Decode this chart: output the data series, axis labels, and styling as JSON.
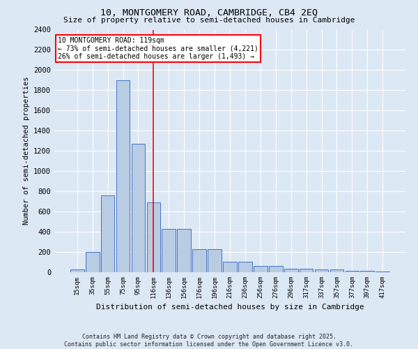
{
  "title_line1": "10, MONTGOMERY ROAD, CAMBRIDGE, CB4 2EQ",
  "title_line2": "Size of property relative to semi-detached houses in Cambridge",
  "xlabel": "Distribution of semi-detached houses by size in Cambridge",
  "ylabel": "Number of semi-detached properties",
  "categories": [
    "15sqm",
    "35sqm",
    "55sqm",
    "75sqm",
    "95sqm",
    "116sqm",
    "136sqm",
    "156sqm",
    "176sqm",
    "196sqm",
    "216sqm",
    "236sqm",
    "256sqm",
    "276sqm",
    "296sqm",
    "317sqm",
    "337sqm",
    "357sqm",
    "377sqm",
    "397sqm",
    "417sqm"
  ],
  "values": [
    25,
    200,
    760,
    1900,
    1270,
    690,
    430,
    430,
    230,
    230,
    105,
    105,
    60,
    60,
    35,
    35,
    25,
    25,
    15,
    15,
    10
  ],
  "bar_color": "#b8cce4",
  "bar_edge_color": "#4472c4",
  "vline_color": "#ff0000",
  "annotation_text_line1": "10 MONTGOMERY ROAD: 119sqm",
  "annotation_text_line2": "← 73% of semi-detached houses are smaller (4,221)",
  "annotation_text_line3": "26% of semi-detached houses are larger (1,493) →",
  "annotation_box_color": "#ffffff",
  "annotation_box_edge": "#ff0000",
  "ylim": [
    0,
    2400
  ],
  "yticks": [
    0,
    200,
    400,
    600,
    800,
    1000,
    1200,
    1400,
    1600,
    1800,
    2000,
    2200,
    2400
  ],
  "background_color": "#dde8f5",
  "footer_line1": "Contains HM Land Registry data © Crown copyright and database right 2025.",
  "footer_line2": "Contains public sector information licensed under the Open Government Licence v3.0."
}
